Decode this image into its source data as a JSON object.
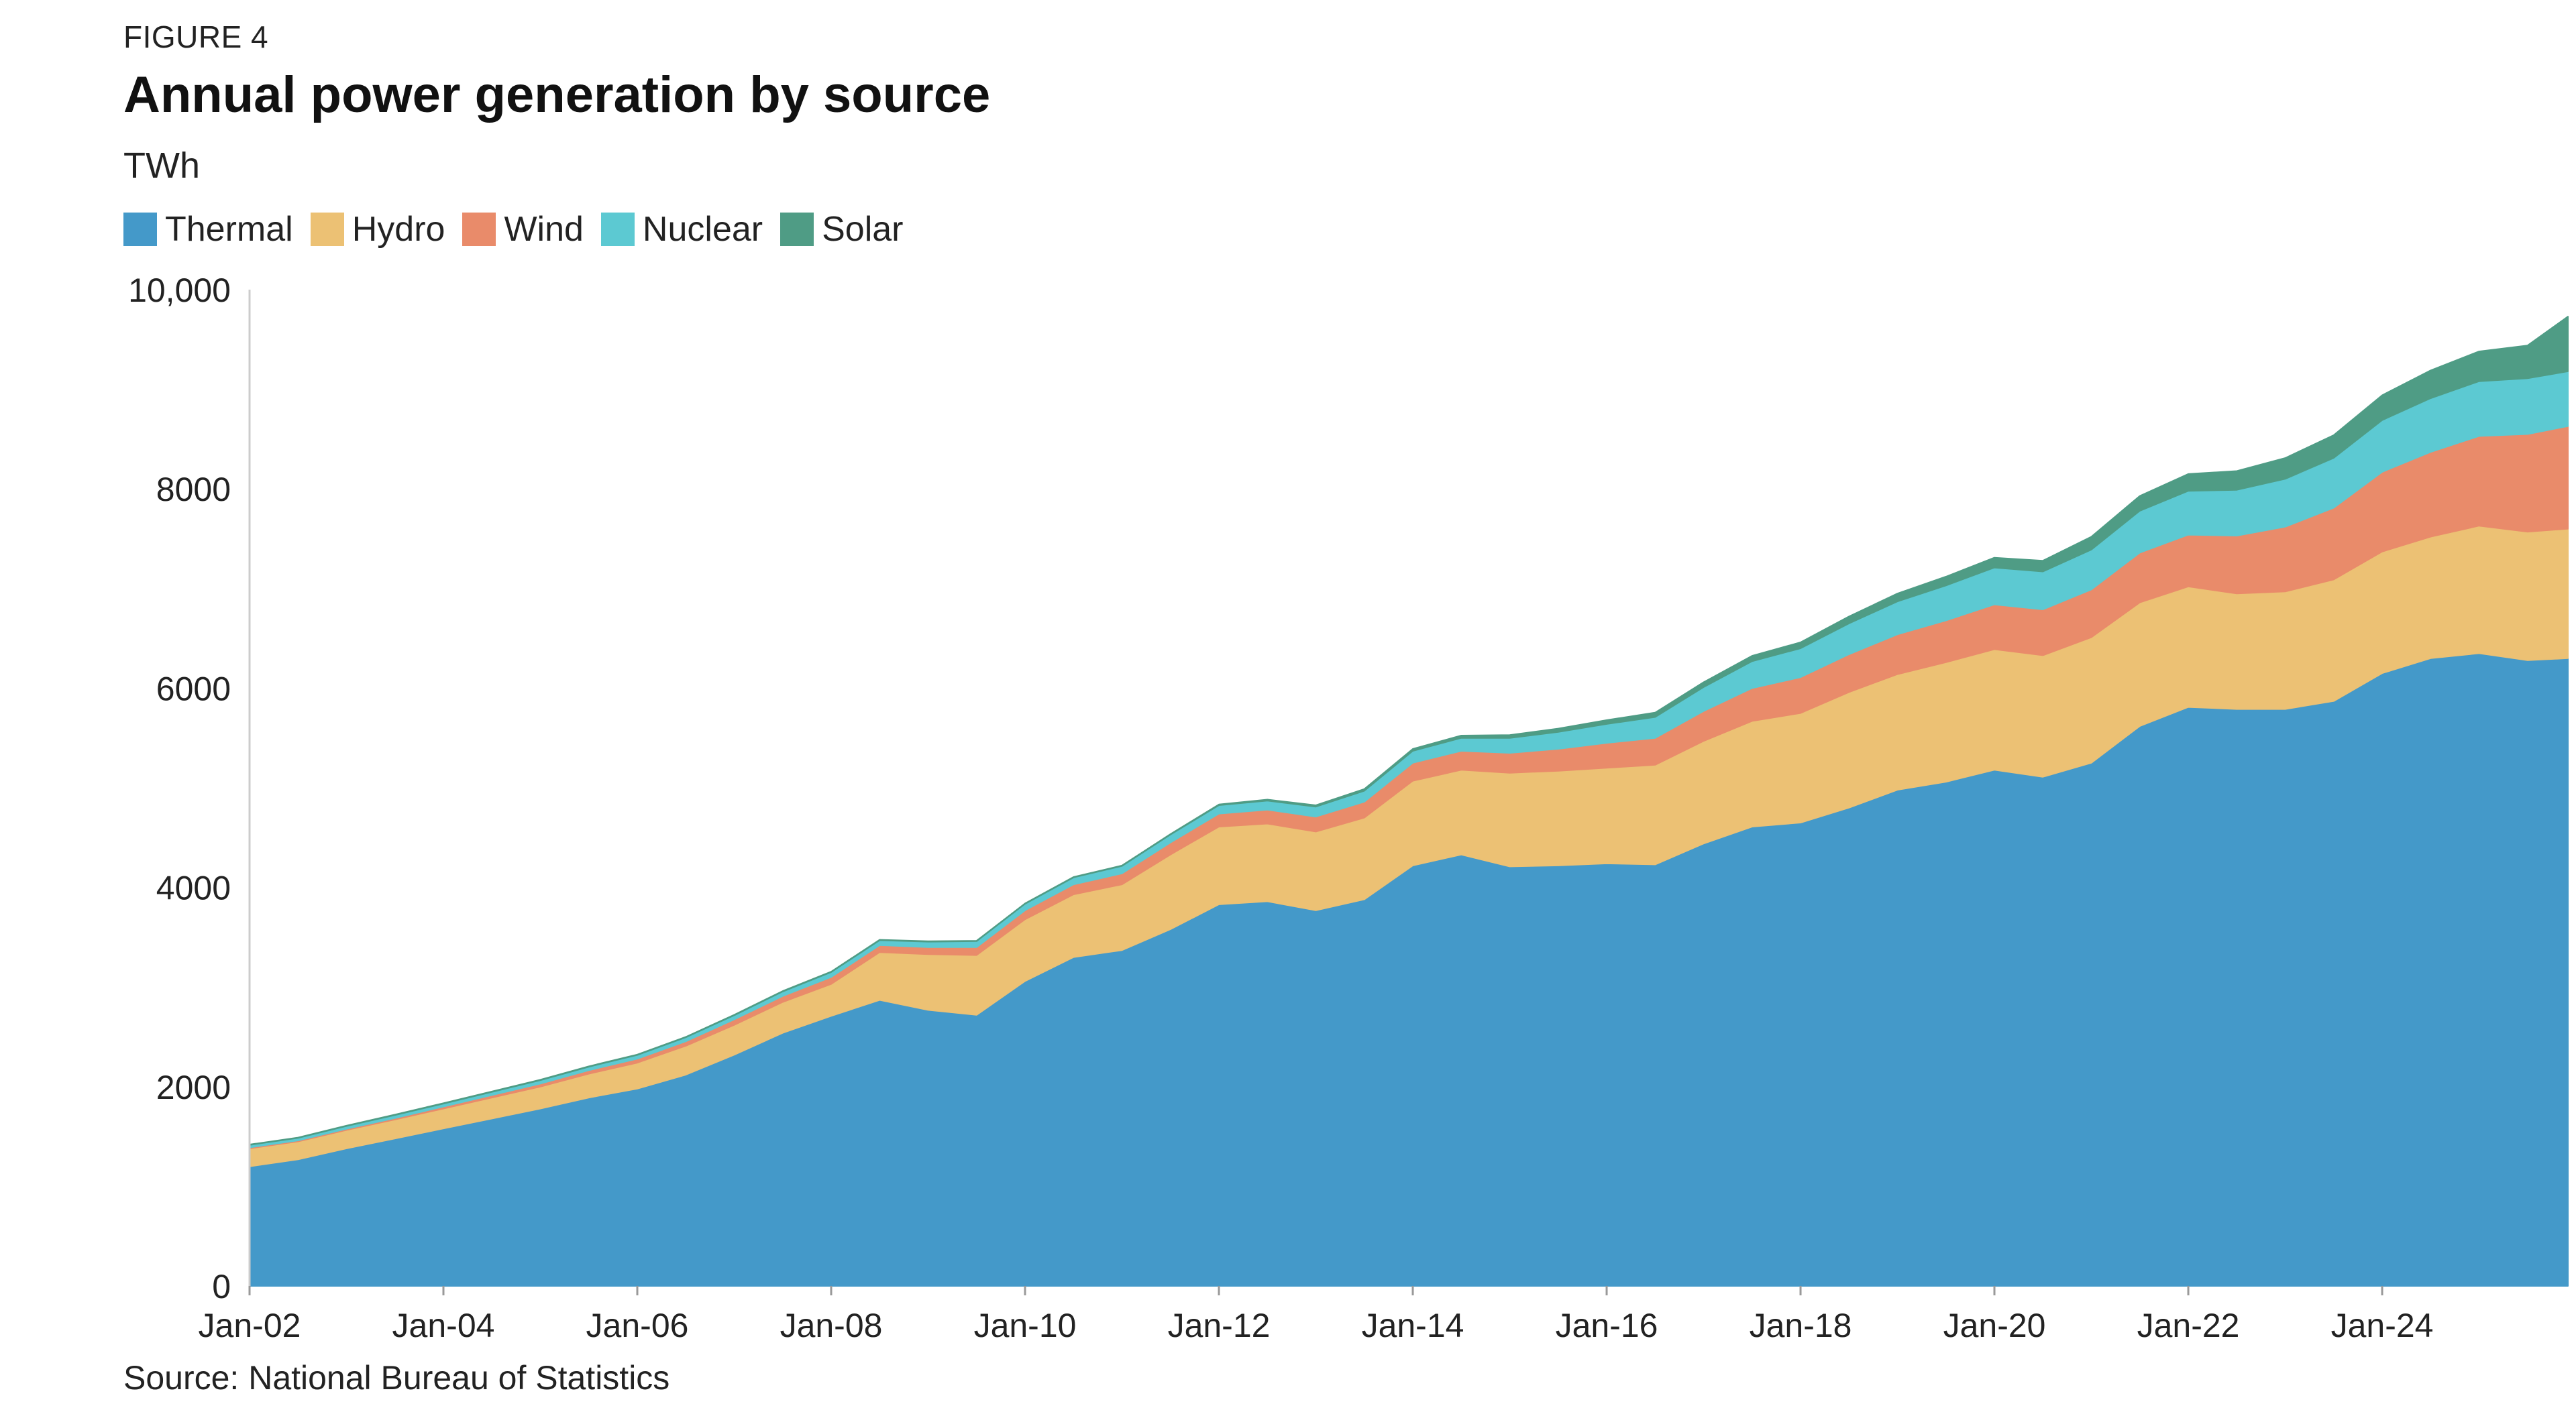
{
  "figure_label": "FIGURE 4",
  "title": "Annual power generation by source",
  "unit_label": "TWh",
  "source": "Source: National Bureau of Statistics",
  "colors": {
    "Thermal": "#4499c9",
    "Hydro": "#ecc174",
    "Wind": "#e98b6a",
    "Nuclear": "#5cc9d2",
    "Solar": "#4f9c85",
    "axis": "#cccccc"
  },
  "chart_data": {
    "type": "area",
    "stacked": true,
    "title": "Annual power generation by source",
    "ylabel": "TWh",
    "ylim": [
      0,
      10000
    ],
    "yticks": [
      0,
      2000,
      4000,
      6000,
      8000,
      10000
    ],
    "ytick_labels": [
      "0",
      "2000",
      "4000",
      "6000",
      "8000",
      "10,000"
    ],
    "xticks": [
      "Jan-02",
      "Jan-04",
      "Jan-06",
      "Jan-08",
      "Jan-10",
      "Jan-12",
      "Jan-14",
      "Jan-16",
      "Jan-18",
      "Jan-20",
      "Jan-22",
      "Jan-24"
    ],
    "legend": [
      "Thermal",
      "Hydro",
      "Wind",
      "Nuclear",
      "Solar"
    ],
    "legend_position": "top-left",
    "grid": false,
    "x": [
      "Jan-02",
      "Jul-02",
      "Jan-03",
      "Jul-03",
      "Jan-04",
      "Jul-04",
      "Jan-05",
      "Jul-05",
      "Jan-06",
      "Jul-06",
      "Jan-07",
      "Jul-07",
      "Jan-08",
      "Jul-08",
      "Jan-09",
      "Jul-09",
      "Jan-10",
      "Jul-10",
      "Jan-11",
      "Jul-11",
      "Jan-12",
      "Jul-12",
      "Jan-13",
      "Jul-13",
      "Jan-14",
      "Jul-14",
      "Jan-15",
      "Jul-15",
      "Jan-16",
      "Jul-16",
      "Jan-17",
      "Jul-17",
      "Jan-18",
      "Jul-18",
      "Jan-19",
      "Jul-19",
      "Jan-20",
      "Jul-20",
      "Jan-21",
      "Jul-21",
      "Jan-22",
      "Jul-22",
      "Jan-23",
      "Jul-23",
      "Jan-24",
      "Jul-24",
      "Jan-25",
      "Jul-25",
      "Dec-25"
    ],
    "series": [
      {
        "name": "Thermal",
        "values": [
          1200,
          1270,
          1380,
          1480,
          1580,
          1680,
          1780,
          1890,
          1980,
          2120,
          2320,
          2540,
          2710,
          2870,
          2770,
          2720,
          3060,
          3300,
          3370,
          3580,
          3830,
          3860,
          3770,
          3880,
          4220,
          4330,
          4210,
          4220,
          4240,
          4230,
          4440,
          4610,
          4650,
          4800,
          4980,
          5060,
          5180,
          5110,
          5250,
          5620,
          5810,
          5790,
          5790,
          5870,
          6150,
          6300,
          6350,
          6280,
          6300
        ]
      },
      {
        "name": "Hydro",
        "values": [
          180,
          180,
          185,
          190,
          200,
          210,
          220,
          240,
          260,
          290,
          300,
          310,
          320,
          480,
          560,
          600,
          620,
          630,
          660,
          750,
          780,
          780,
          790,
          820,
          850,
          850,
          940,
          950,
          960,
          1000,
          1030,
          1060,
          1100,
          1160,
          1160,
          1200,
          1210,
          1220,
          1260,
          1240,
          1210,
          1160,
          1180,
          1220,
          1220,
          1220,
          1280,
          1290,
          1300
        ]
      },
      {
        "name": "Wind",
        "values": [
          10,
          10,
          12,
          15,
          20,
          25,
          30,
          35,
          40,
          45,
          55,
          60,
          70,
          70,
          70,
          80,
          90,
          100,
          110,
          120,
          130,
          140,
          150,
          160,
          180,
          190,
          200,
          220,
          250,
          270,
          300,
          330,
          360,
          380,
          400,
          420,
          450,
          460,
          480,
          500,
          520,
          580,
          650,
          720,
          800,
          850,
          900,
          980,
          1030
        ]
      },
      {
        "name": "Nuclear",
        "values": [
          25,
          25,
          28,
          30,
          30,
          32,
          35,
          35,
          38,
          40,
          42,
          45,
          50,
          50,
          55,
          60,
          65,
          70,
          75,
          80,
          85,
          90,
          100,
          110,
          120,
          130,
          150,
          170,
          190,
          210,
          240,
          270,
          290,
          310,
          330,
          350,
          370,
          380,
          400,
          420,
          440,
          460,
          480,
          500,
          520,
          540,
          550,
          560,
          550
        ]
      },
      {
        "name": "Solar",
        "values": [
          5,
          5,
          5,
          5,
          5,
          5,
          5,
          5,
          5,
          5,
          5,
          5,
          5,
          5,
          5,
          5,
          5,
          5,
          5,
          6,
          8,
          12,
          15,
          18,
          20,
          25,
          30,
          35,
          40,
          45,
          50,
          55,
          60,
          70,
          80,
          90,
          100,
          110,
          130,
          150,
          170,
          190,
          210,
          230,
          250,
          280,
          300,
          330,
          550
        ]
      }
    ]
  }
}
